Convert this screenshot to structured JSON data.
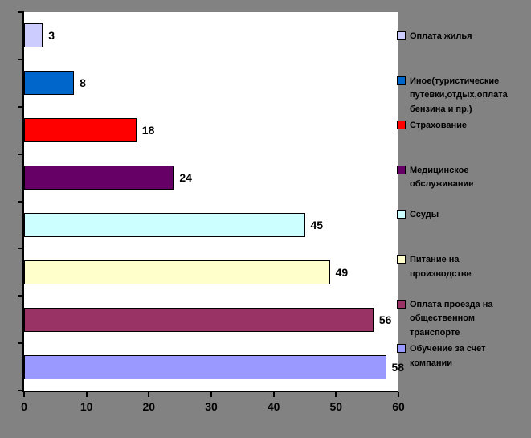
{
  "window": {
    "background_color": "#828282",
    "plot_background_color": "#FFFFFF",
    "axis_color": "#000000"
  },
  "chart_data": {
    "type": "bar",
    "orientation": "horizontal",
    "title": "",
    "xlabel": "",
    "ylabel": "",
    "xlim": [
      0,
      60
    ],
    "x_ticks": [
      0,
      10,
      20,
      30,
      40,
      50,
      60
    ],
    "grid": false,
    "legend_position": "right",
    "value_labels_shown": true,
    "bars": [
      {
        "label": "Оплата жилья",
        "value": 3,
        "color": "#CCCCFF"
      },
      {
        "label": "Иное(туристические путевки,отдых,оплата бензина и пр.)",
        "value": 8,
        "color": "#0066CC"
      },
      {
        "label": "Страхование",
        "value": 18,
        "color": "#FF0000"
      },
      {
        "label": "Медицинское обслуживание",
        "value": 24,
        "color": "#660066"
      },
      {
        "label": "Ссуды",
        "value": 45,
        "color": "#CCFFFF"
      },
      {
        "label": "Питание на производстве",
        "value": 49,
        "color": "#FFFFCC"
      },
      {
        "label": "Оплата проезда на общественном транспорте",
        "value": 56,
        "color": "#993366"
      },
      {
        "label": "Обучение за счет компании",
        "value": 58,
        "color": "#9999FF"
      }
    ]
  }
}
